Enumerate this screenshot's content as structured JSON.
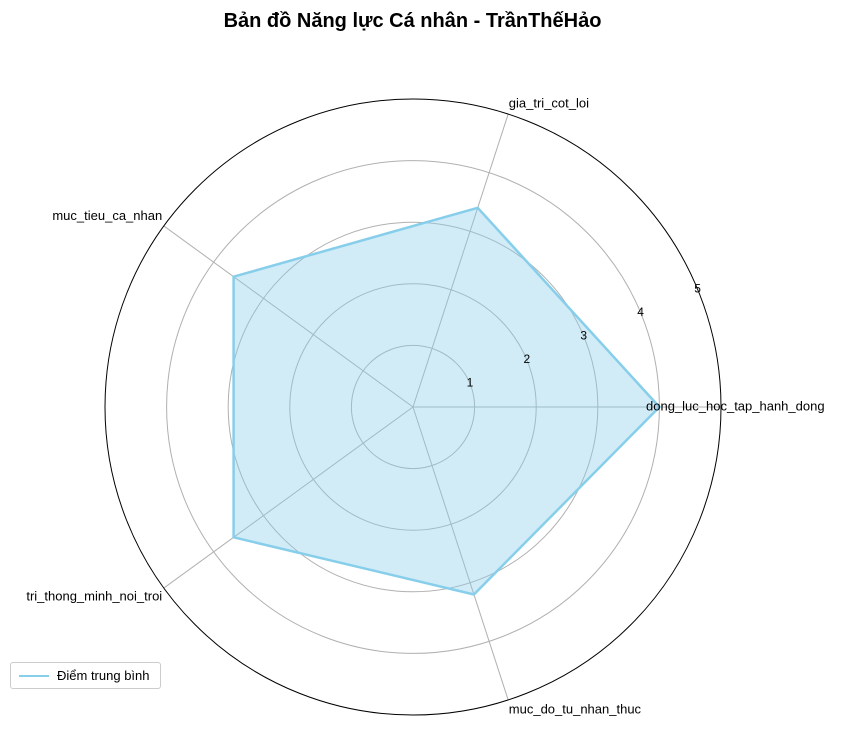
{
  "title": "Bản đồ Năng lực Cá nhân - TrầnThếHảo",
  "chart_data": {
    "type": "radar",
    "categories": [
      "dong_luc_hoc_tap_hanh_dong",
      "gia_tri_cot_loi",
      "muc_tieu_ca_nhan",
      "tri_thong_minh_noi_troi",
      "muc_do_tu_nhan_thuc"
    ],
    "series": [
      {
        "name": "Điểm trung bình",
        "values": [
          4.0,
          3.4,
          3.6,
          3.6,
          3.2
        ],
        "color": "#87ceeb"
      }
    ],
    "r_ticks": [
      1,
      2,
      3,
      4,
      5
    ],
    "rlim": [
      0,
      5
    ],
    "grid": true,
    "legend_position": "lower-left"
  }
}
